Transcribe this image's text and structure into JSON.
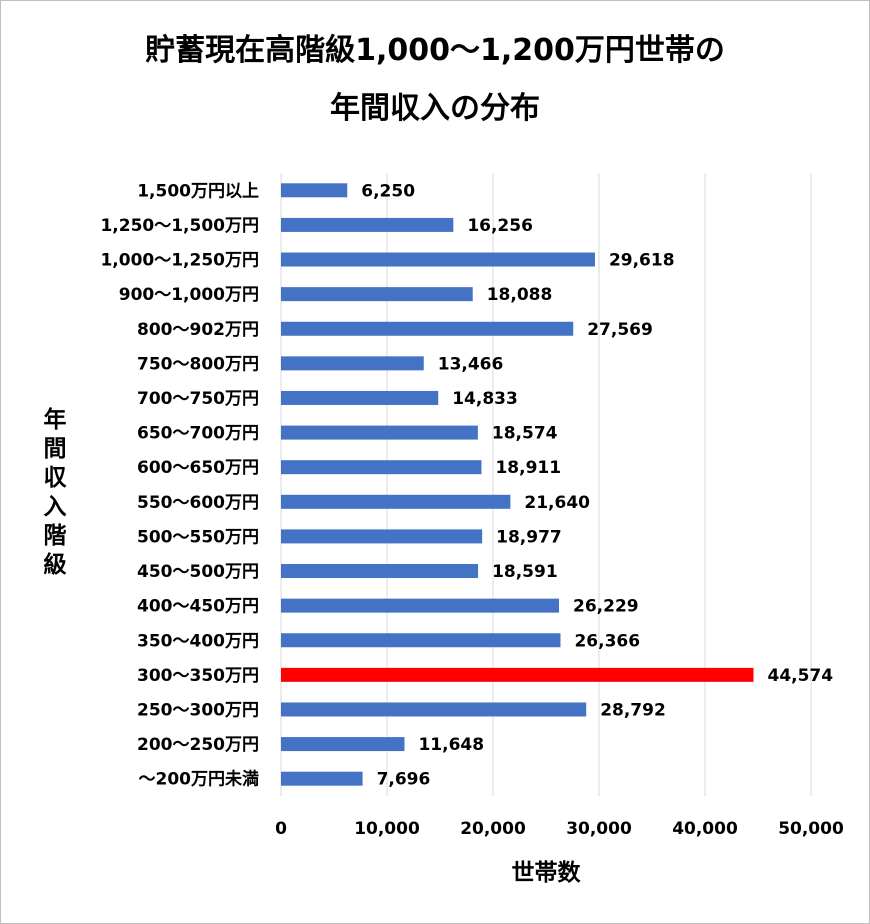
{
  "title_line1": "貯蓄現在高階級1,000～1,200万円世帯の",
  "title_line2": "年間収入の分布",
  "chart_data": {
    "type": "bar",
    "orientation": "horizontal",
    "title": "貯蓄現在高階級1,000～1,200万円世帯の年間収入の分布",
    "xlabel": "世帯数",
    "ylabel": "年間収入階級",
    "xlim": [
      0,
      50000
    ],
    "x_ticks": [
      "0",
      "10,000",
      "20,000",
      "30,000",
      "40,000",
      "50,000"
    ],
    "gridlines": true,
    "legend": "none",
    "default_color": "#4472C4",
    "highlight_color": "#FF0000",
    "highlight_category": "300～350万円",
    "categories": [
      "1,500万円以上",
      "1,250～1,500万円",
      "1,000～1,250万円",
      "900～1,000万円",
      "800～902万円",
      "750～800万円",
      "700～750万円",
      "650～700万円",
      "600～650万円",
      "550～600万円",
      "500～550万円",
      "450～500万円",
      "400～450万円",
      "350～400万円",
      "300～350万円",
      "250～300万円",
      "200～250万円",
      "～200万円未満"
    ],
    "values": [
      6250,
      16256,
      29618,
      18088,
      27569,
      13466,
      14833,
      18574,
      18911,
      21640,
      18977,
      18591,
      26229,
      26366,
      44574,
      28792,
      11648,
      7696
    ],
    "data_labels": [
      "6,250",
      "16,256",
      "29,618",
      "18,088",
      "27,569",
      "13,466",
      "14,833",
      "18,574",
      "18,911",
      "21,640",
      "18,977",
      "18,591",
      "26,229",
      "26,366",
      "44,574",
      "28,792",
      "11,648",
      "7,696"
    ]
  }
}
